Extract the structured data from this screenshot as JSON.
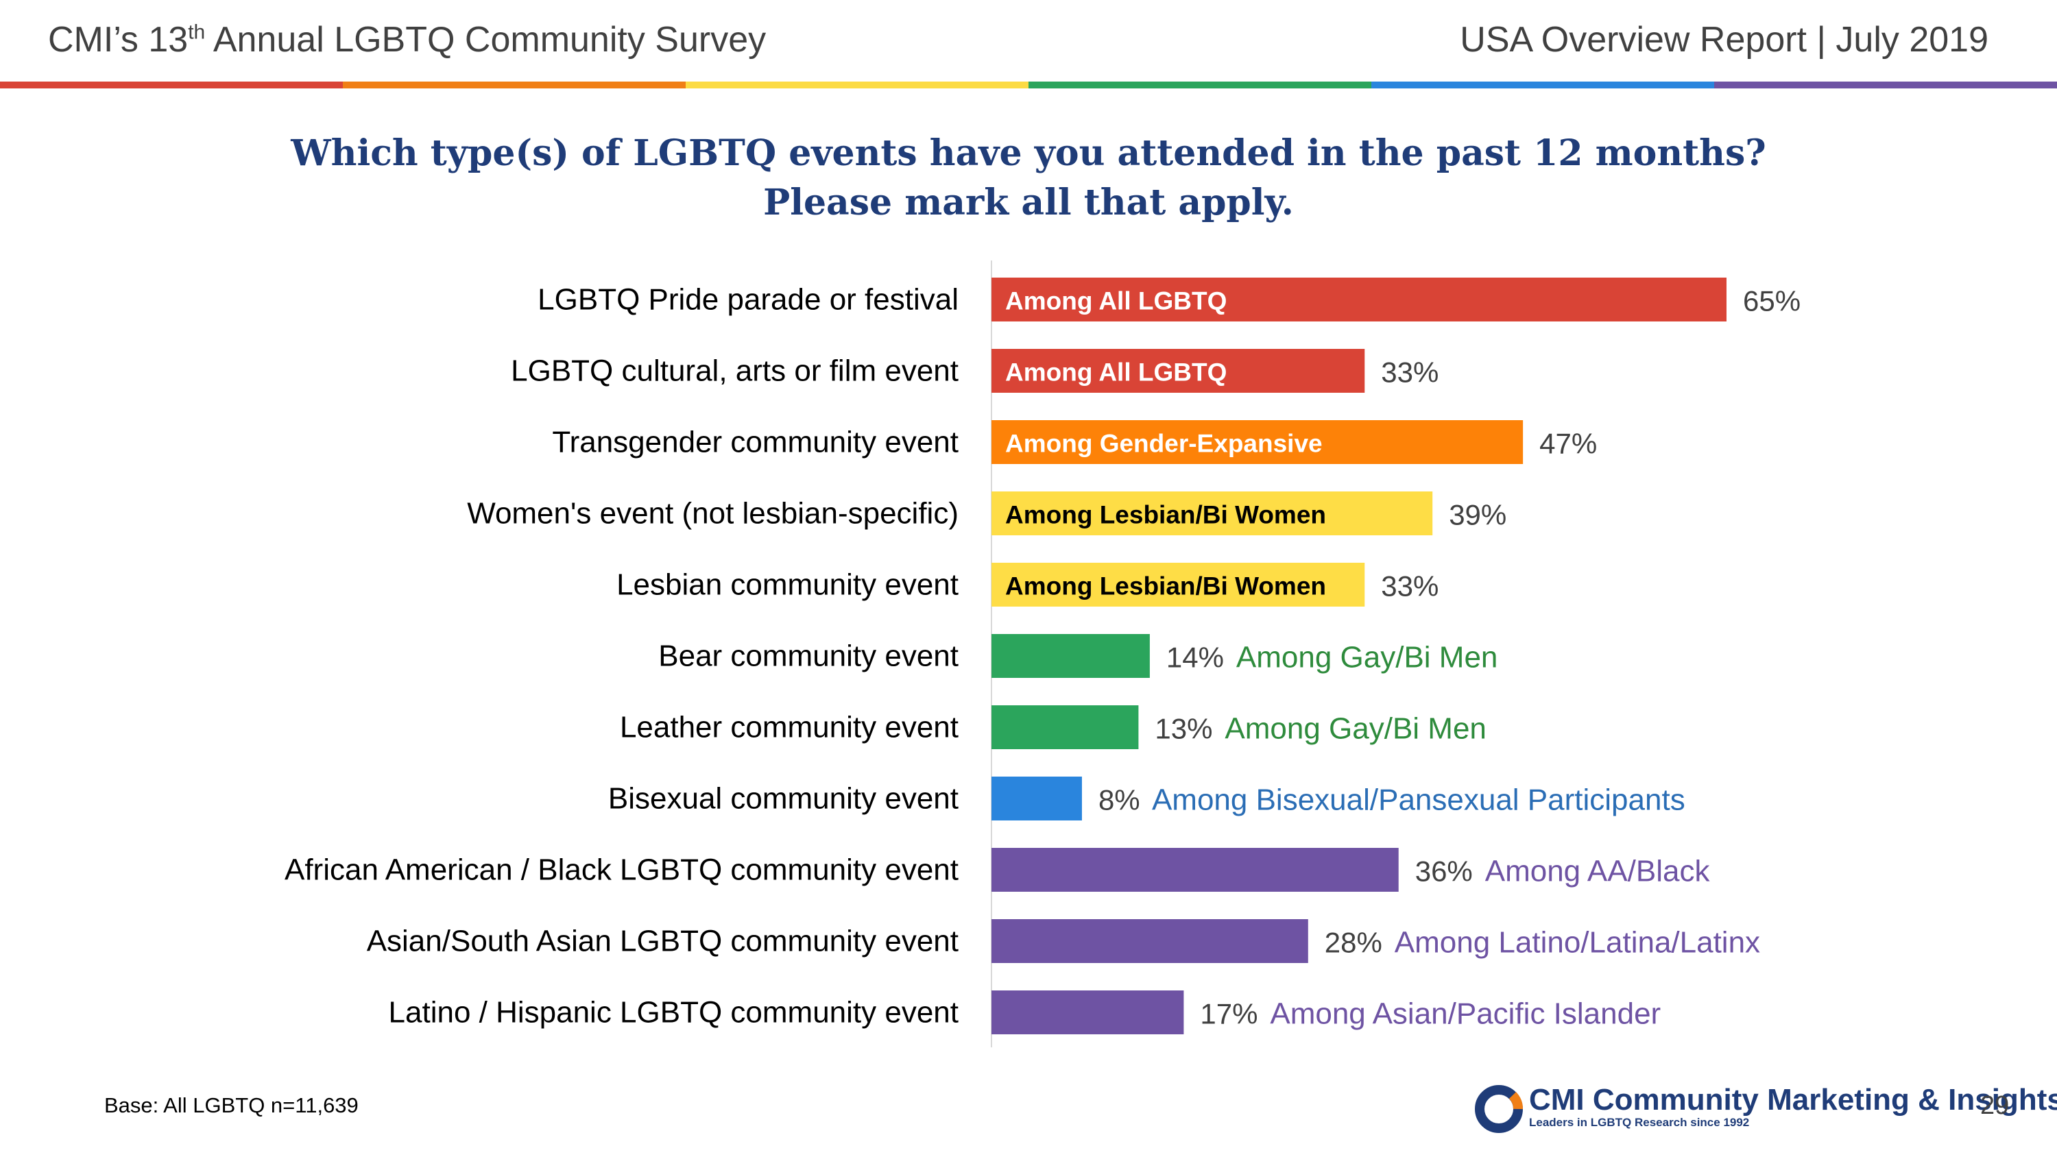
{
  "header": {
    "title_prefix": "CMI’s 13",
    "title_sup": "th",
    "title_suffix": " Annual LGBTQ Community Survey",
    "report": "USA Overview Report | July 2019"
  },
  "rainbow_colors": [
    "#d94436",
    "#f07f16",
    "#fcdb44",
    "#2ba55c",
    "#2a85dd",
    "#6e53a3"
  ],
  "chart_data": {
    "type": "bar",
    "orientation": "horizontal",
    "title_line1": "Which type(s) of LGBTQ events have you attended in the past 12 months?",
    "title_line2": "Please mark all that apply.",
    "xlim": [
      0,
      65
    ],
    "unit": "%",
    "categories": [
      "LGBTQ Pride parade or festival",
      "LGBTQ cultural, arts or film event",
      "Transgender community event",
      "Women's event (not lesbian-specific)",
      "Lesbian community event",
      "Bear community event",
      "Leather community event",
      "Bisexual community event",
      "African American / Black LGBTQ community event",
      "Asian/South Asian LGBTQ community event",
      "Latino / Hispanic LGBTQ community event"
    ],
    "values": [
      65,
      33,
      47,
      39,
      33,
      14,
      13,
      8,
      36,
      28,
      17
    ],
    "value_labels": [
      "65%",
      "33%",
      "47%",
      "39%",
      "33%",
      "14%",
      "13%",
      "8%",
      "36%",
      "28%",
      "17%"
    ],
    "bases": [
      "Among All LGBTQ",
      "Among All LGBTQ",
      "Among Gender-Expansive",
      "Among Lesbian/Bi Women",
      "Among Lesbian/Bi Women",
      "Among Gay/Bi Men",
      "Among Gay/Bi Men",
      "Among Bisexual/Pansexual Participants",
      "Among AA/Black",
      "Among Latino/Latina/Latinx",
      "Among Asian/Pacific Islander"
    ],
    "base_inside_bar": [
      true,
      true,
      true,
      true,
      true,
      false,
      false,
      false,
      false,
      false,
      false
    ],
    "bar_colors": [
      "#d94436",
      "#d94436",
      "#fd8208",
      "#fedd46",
      "#fedd46",
      "#2ba55c",
      "#2ba55c",
      "#2a85dd",
      "#6e53a3",
      "#6e53a3",
      "#6e53a3"
    ],
    "base_text_colors": [
      "#ffffff",
      "#ffffff",
      "#ffffff",
      "#000000",
      "#000000",
      "#2e8b3c",
      "#2e8b3c",
      "#2a6db5",
      "#6e53a3",
      "#6e53a3",
      "#6e53a3"
    ]
  },
  "footer": {
    "base_note": "Base: All LGBTQ n=11,639",
    "logo_cmi": "CMI",
    "logo_name": "Community Marketing & Insights",
    "logo_tagline": "Leaders in LGBTQ Research since 1992",
    "page_number": "29"
  }
}
